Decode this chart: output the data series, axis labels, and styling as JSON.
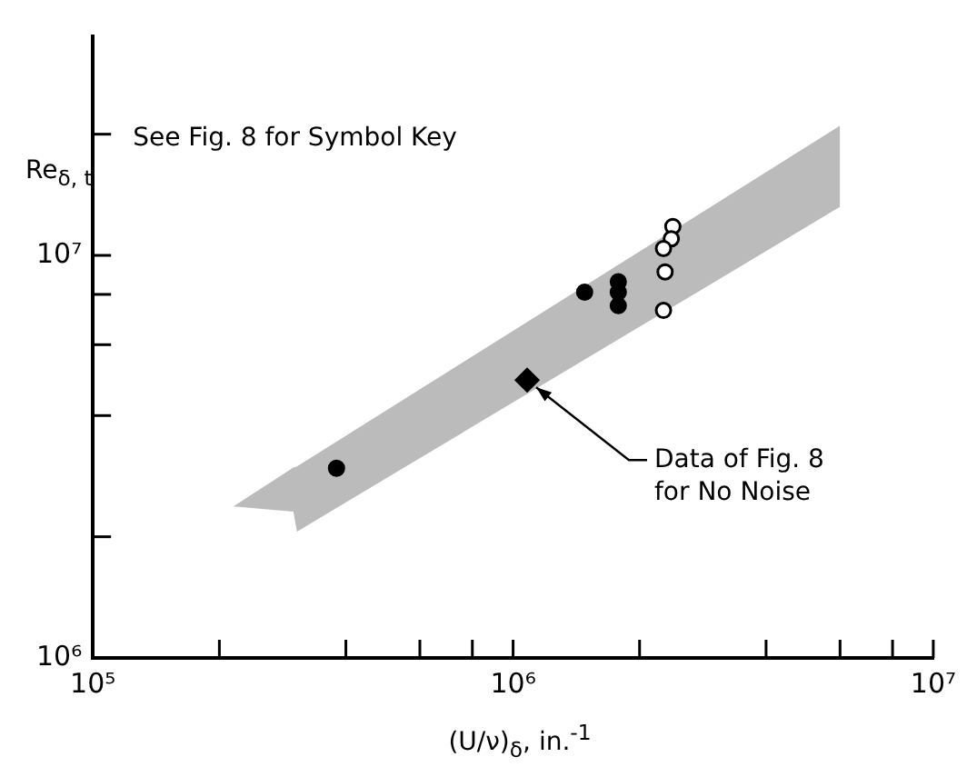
{
  "chart_data": {
    "type": "scatter",
    "xlabel": "(U/ν)$_{δ}$, in.$^{-1}$",
    "ylabel": "Re$_{δ, t}$",
    "log": "xy",
    "grid": false,
    "legend": false,
    "xlim": [
      100000,
      10000000
    ],
    "ylim": [
      1000000,
      35000000
    ],
    "xticks": [
      {
        "value": 100000,
        "label": "10⁵"
      },
      {
        "value": 200000,
        "label": null
      },
      {
        "value": 400000,
        "label": null
      },
      {
        "value": 600000,
        "label": null
      },
      {
        "value": 800000,
        "label": null
      },
      {
        "value": 1000000,
        "label": "10⁶"
      },
      {
        "value": 2000000,
        "label": null
      },
      {
        "value": 4000000,
        "label": null
      },
      {
        "value": 6000000,
        "label": null
      },
      {
        "value": 8000000,
        "label": null
      },
      {
        "value": 10000000,
        "label": "10⁷"
      }
    ],
    "yticks": [
      {
        "value": 1000000,
        "label": "10⁶"
      },
      {
        "value": 2000000,
        "label": null
      },
      {
        "value": 4000000,
        "label": null
      },
      {
        "value": 6000000,
        "label": null
      },
      {
        "value": 8000000,
        "label": null
      },
      {
        "value": 10000000,
        "label": "10⁷"
      },
      {
        "value": 20000000,
        "label": null
      }
    ],
    "series": [
      {
        "type": "area",
        "color": "#bbbbbb",
        "x": [
          216000,
          300000,
          306000,
          6000000
        ],
        "values": [
          null,
          null,
          null,
          null
        ],
        "upper": [
          2380000,
          2970000,
          2990000,
          21000000
        ],
        "lower": [
          2380000,
          2310000,
          2060000,
          13200000
        ]
      },
      {
        "marker": "circle",
        "color": "#000000",
        "x": [
          380000,
          1480000,
          1780000,
          1780000,
          1780000
        ],
        "values": [
          2960000,
          8100000,
          8600000,
          8100000,
          7500000
        ]
      },
      {
        "marker": "diamond",
        "color": "#000000",
        "x": [
          1080000
        ],
        "values": [
          4900000
        ]
      },
      {
        "marker": "circle",
        "color": "#ffffff",
        "x": [
          2400000,
          2380000,
          2280000,
          2300000,
          2280000
        ],
        "values": [
          11800000,
          11000000,
          10400000,
          9100000,
          7300000
        ]
      }
    ],
    "annotations": [
      "See Fig. 8 for Symbol Key",
      {
        "text": "Data of Fig. 8\nfor No Noise",
        "x": 1080000,
        "y": 4900000
      }
    ]
  }
}
